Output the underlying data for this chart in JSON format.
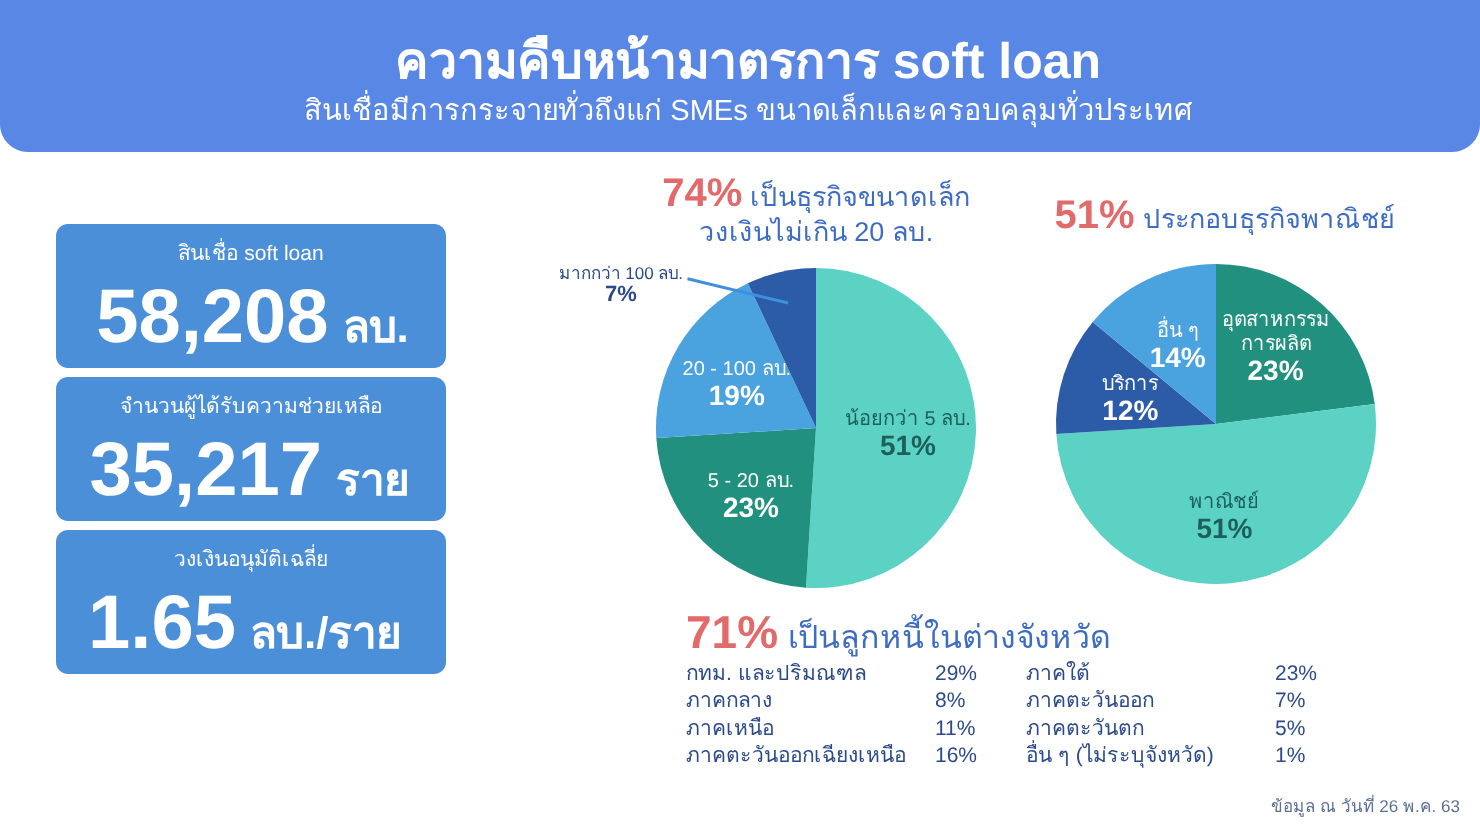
{
  "chart_data": [
    {
      "type": "other",
      "title": "ความคืบหน้ามาตรการ soft loan",
      "subtitle": "สินเชื่อมีการกระจายทั่วถึงแก่ SMEs ขนาดเล็กและครอบคลุมทั่วประเทศ",
      "annotations": [
        "สินเชื่อ soft loan",
        "58,208 ลบ.",
        "จำนวนผู้ได้รับความช่วยเหลือ",
        "35,217 ราย",
        "วงเงินอนุมัติเฉลี่ย",
        "1.65 ลบ./ราย"
      ]
    },
    {
      "type": "pie",
      "title": "74% เป็นธุรกิจขนาดเล็ก\nวงเงินไม่เกิน 20 ลบ.",
      "categories": [
        "น้อยกว่า 5 ลบ.",
        "5 - 20 ลบ.",
        "20 - 100 ลบ.",
        "มากกว่า 100 ลบ."
      ],
      "values": [
        51,
        23,
        19,
        7
      ],
      "colors": [
        "#5cd2c5",
        "#22907f",
        "#4aa2df",
        "#2c5ca8"
      ],
      "value_labels": [
        "51%",
        "23%",
        "19%",
        "7%"
      ]
    },
    {
      "type": "pie",
      "title": "51% ประกอบธุรกิจพาณิชย์",
      "categories": [
        "อุตสาหกรรม\nการผลิต",
        "พาณิชย์",
        "บริการ",
        "อื่น ๆ"
      ],
      "values": [
        23,
        51,
        12,
        14
      ],
      "colors": [
        "#22907f",
        "#5cd2c5",
        "#2c5ca8",
        "#4aa2df"
      ],
      "value_labels": [
        "23%",
        "51%",
        "12%",
        "14%"
      ]
    },
    {
      "type": "other",
      "title": "71% เป็นลูกหนี้ในต่างจังหวัด",
      "categories": [
        "กทม. และปริมณฑล",
        "ภาคกลาง",
        "ภาคเหนือ",
        "ภาคตะวันออกเฉียงเหนือ",
        "ภาคใต้",
        "ภาคตะวันออก",
        "ภาคตะวันตก",
        "อื่น ๆ (ไม่ระบุจังหวัด)"
      ],
      "value_labels": [
        "29%",
        "8%",
        "11%",
        "16%",
        "23%",
        "7%",
        "5%",
        "1%"
      ],
      "annotations": [
        "ข้อมูล ณ วันที่ 26 พ.ค. 63"
      ]
    }
  ]
}
